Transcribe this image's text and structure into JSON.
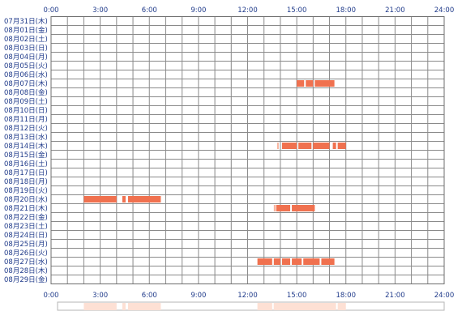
{
  "colors": {
    "grid_line": "#8a8a8a",
    "grid_border": "#6e6e6e",
    "activity_block": "#f0714f",
    "activity_light": "#f8b49e",
    "summary_fill": "#fde0d4",
    "summary_light": "#fbcbb8",
    "label_text": "#1f3a8a"
  },
  "axis": {
    "hours_range": [
      0,
      24
    ],
    "tick_labels": [
      "0:00",
      "3:00",
      "6:00",
      "9:00",
      "12:00",
      "15:00",
      "18:00",
      "21:00",
      "24:00"
    ]
  },
  "dates": [
    "07月31日(木)",
    "08月01日(金)",
    "08月02日(土)",
    "08月03日(日)",
    "08月04日(月)",
    "08月05日(火)",
    "08月06日(水)",
    "08月07日(木)",
    "08月08日(金)",
    "08月09日(土)",
    "08月10日(日)",
    "08月11日(月)",
    "08月12日(火)",
    "08月13日(水)",
    "08月14日(木)",
    "08月15日(金)",
    "08月16日(土)",
    "08月17日(日)",
    "08月18日(月)",
    "08月19日(火)",
    "08月20日(水)",
    "08月21日(木)",
    "08月22日(金)",
    "08月23日(土)",
    "08月24日(日)",
    "08月25日(月)",
    "08月26日(火)",
    "08月27日(水)",
    "08月28日(木)",
    "08月29日(金)"
  ],
  "activity": [
    {
      "row": 7,
      "blocks": [
        [
          15.0,
          15.45
        ],
        [
          15.55,
          16.0
        ],
        [
          16.1,
          17.3
        ]
      ]
    },
    {
      "row": 14,
      "blocks": [
        [
          13.8,
          13.9
        ],
        [
          14.1,
          15.0
        ],
        [
          15.1,
          15.9
        ],
        [
          16.0,
          17.0
        ],
        [
          17.2,
          17.4
        ],
        [
          17.5,
          18.0
        ]
      ]
    },
    {
      "row": 20,
      "blocks": [
        [
          2.0,
          4.0
        ],
        [
          4.35,
          4.55
        ],
        [
          4.7,
          6.7
        ]
      ]
    },
    {
      "row": 21,
      "blocks": [
        [
          13.6,
          13.72
        ],
        [
          13.75,
          14.6
        ],
        [
          14.7,
          16.1
        ]
      ]
    },
    {
      "row": 27,
      "blocks": [
        [
          12.6,
          13.5
        ],
        [
          13.6,
          14.0
        ],
        [
          14.1,
          14.6
        ],
        [
          14.7,
          15.3
        ],
        [
          15.4,
          16.4
        ],
        [
          16.5,
          17.3
        ]
      ]
    }
  ]
}
